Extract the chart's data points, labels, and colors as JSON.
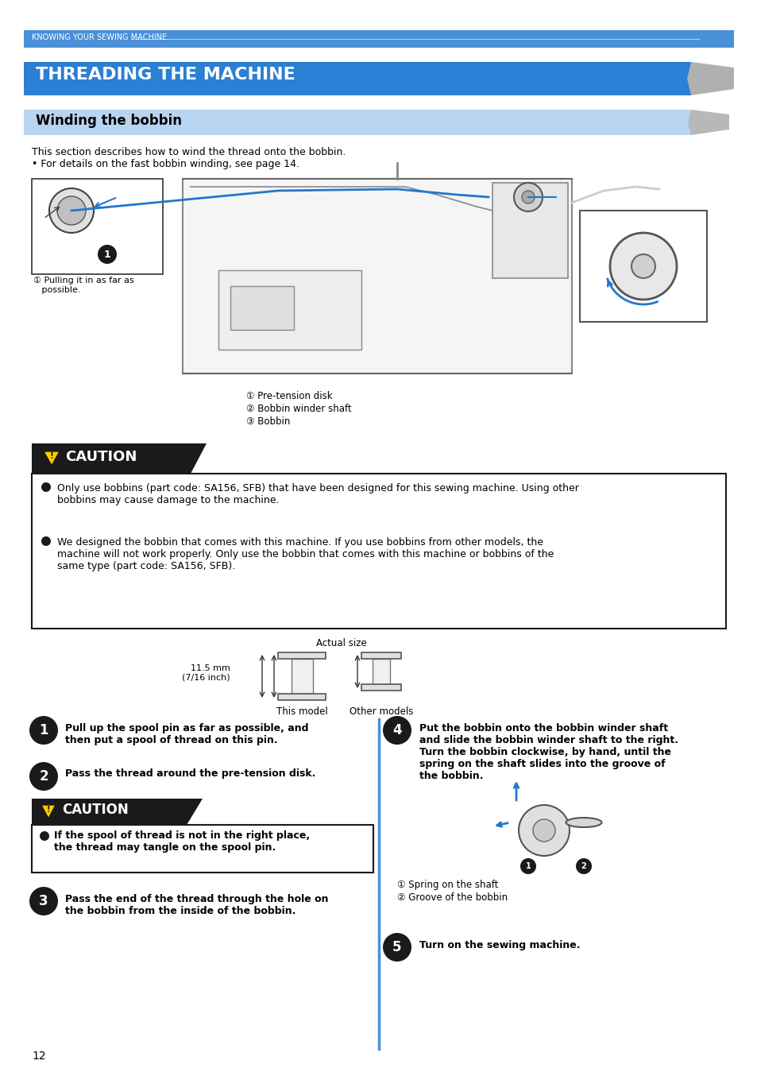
{
  "page_bg": "#ffffff",
  "header_bar_color": "#4a90d9",
  "header_bar_text": "KNOWING YOUR SEWING MACHINE",
  "title_bar_color": "#2b7fd4",
  "title_text": "THREADING THE MACHINE",
  "subtitle_bar_color": "#b8d4f0",
  "subtitle_text": "Winding the bobbin",
  "intro_text": "This section describes how to wind the thread onto the bobbin.\n• For details on the fast bobbin winding, see page 14.",
  "labels_1": [
    "① Pre-tension disk",
    "② Bobbin winder shaft",
    "③ Bobbin"
  ],
  "caution_title": "CAUTION",
  "caution_bullets_1": [
    "Only use bobbins (part code: SA156, SFB) that have been designed for this sewing machine. Using other\nbobbins may cause damage to the machine.",
    "We designed the bobbin that comes with this machine. If you use bobbins from other models, the\nmachine will not work properly. Only use the bobbin that comes with this machine or bobbins of the\nsame type (part code: SA156, SFB)."
  ],
  "actual_size_label": "Actual size",
  "bobbin_size_label": "11.5 mm\n(7/16 inch)",
  "this_model_label": "This model",
  "other_models_label": "Other models",
  "step1_text": "Pull up the spool pin as far as possible, and\nthen put a spool of thread on this pin.",
  "step2_text": "Pass the thread around the pre-tension disk.",
  "step3_text": "Pass the end of the thread through the hole on\nthe bobbin from the inside of the bobbin.",
  "step4_text": "Put the bobbin onto the bobbin winder shaft\nand slide the bobbin winder shaft to the right.\nTurn the bobbin clockwise, by hand, until the\nspring on the shaft slides into the groove of\nthe bobbin.",
  "step5_text": "Turn on the sewing machine.",
  "caution_bullets_2": [
    "If the spool of thread is not in the right place,\nthe thread may tangle on the spool pin."
  ],
  "shaft_label_1": "① Spring on the shaft",
  "shaft_label_2": "② Groove of the bobbin",
  "step_circle_color": "#1a1a1a",
  "step_text_color": "#ffffff",
  "caution_bar_color": "#1a1a1a",
  "caution_text_color": "#ffffff",
  "caution_box_border": "#1a1a1a",
  "page_num": "12",
  "pulling_text": "① Pulling it in as far as\n   possible.",
  "pulling_num": "❶"
}
